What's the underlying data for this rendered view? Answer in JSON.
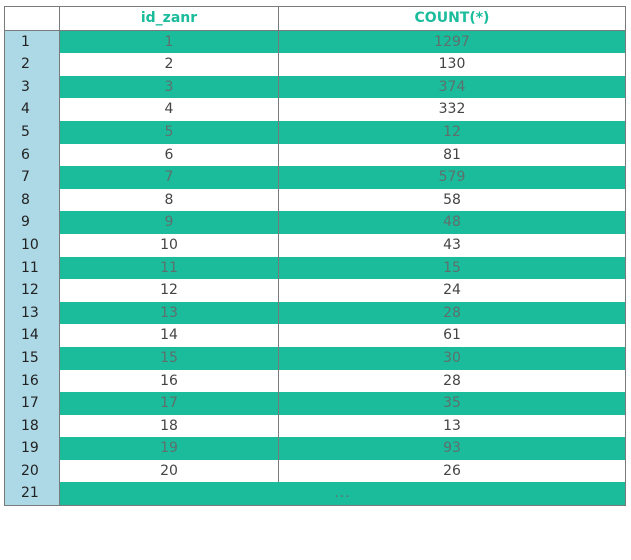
{
  "table": {
    "columns": [
      "id_zanr",
      "COUNT(*)"
    ],
    "rows": [
      {
        "num": "1",
        "id_zanr": "1",
        "count": "1297"
      },
      {
        "num": "2",
        "id_zanr": "2",
        "count": "130"
      },
      {
        "num": "3",
        "id_zanr": "3",
        "count": "374"
      },
      {
        "num": "4",
        "id_zanr": "4",
        "count": "332"
      },
      {
        "num": "5",
        "id_zanr": "5",
        "count": "12"
      },
      {
        "num": "6",
        "id_zanr": "6",
        "count": "81"
      },
      {
        "num": "7",
        "id_zanr": "7",
        "count": "579"
      },
      {
        "num": "8",
        "id_zanr": "8",
        "count": "58"
      },
      {
        "num": "9",
        "id_zanr": "9",
        "count": "48"
      },
      {
        "num": "10",
        "id_zanr": "10",
        "count": "43"
      },
      {
        "num": "11",
        "id_zanr": "11",
        "count": "15"
      },
      {
        "num": "12",
        "id_zanr": "12",
        "count": "24"
      },
      {
        "num": "13",
        "id_zanr": "13",
        "count": "28"
      },
      {
        "num": "14",
        "id_zanr": "14",
        "count": "61"
      },
      {
        "num": "15",
        "id_zanr": "15",
        "count": "30"
      },
      {
        "num": "16",
        "id_zanr": "16",
        "count": "28"
      },
      {
        "num": "17",
        "id_zanr": "17",
        "count": "35"
      },
      {
        "num": "18",
        "id_zanr": "18",
        "count": "13"
      },
      {
        "num": "19",
        "id_zanr": "19",
        "count": "93"
      },
      {
        "num": "20",
        "id_zanr": "20",
        "count": "26"
      }
    ],
    "last_row": {
      "num": "21",
      "ellipsis": "..."
    }
  },
  "colors": {
    "header_text": "#1abc9c",
    "stripe": "#1abc9c",
    "row_number_bg": "#add8e6"
  }
}
